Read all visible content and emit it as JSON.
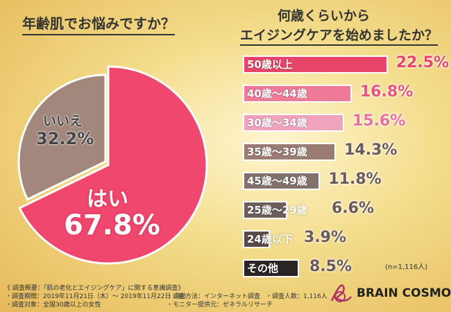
{
  "chart_data": [
    {
      "type": "pie",
      "title": "年齢肌でお悩みですか？",
      "slices": [
        {
          "label": "はい",
          "value": 67.8,
          "display": "67.8%",
          "color": "#f0476e"
        },
        {
          "label": "いいえ",
          "value": 32.2,
          "display": "32.2%",
          "color": "#a1877c"
        }
      ]
    },
    {
      "type": "bar",
      "orientation": "horizontal",
      "title": "何歳くらいから\nエイジングケアを始めましたか？",
      "title_lines": [
        "何歳くらいから",
        "エイジングケアを始めましたか？"
      ],
      "categories": [
        "50歳以上",
        "40歳〜44歳",
        "30歳〜34歳",
        "35歳〜39歳",
        "45歳〜49歳",
        "25歳〜29歳",
        "24歳以下",
        "その他"
      ],
      "values": [
        22.5,
        16.8,
        15.6,
        14.3,
        11.8,
        6.6,
        3.9,
        8.5
      ],
      "labels": [
        "22.5%",
        "16.8%",
        "15.6%",
        "14.3%",
        "11.8%",
        "6.6%",
        "3.9%",
        "8.5%"
      ],
      "colors": [
        "#e8456a",
        "#ee7a98",
        "#f0a3bd",
        "#9b7c73",
        "#82706c",
        "#6d5d5b",
        "#5a4a4a",
        "#2c2424"
      ],
      "value_colors": [
        "#e8456a",
        "#e8557a",
        "#e8709a",
        "#6a5a58",
        "#6a5a58",
        "#6a5a58",
        "#6a5a58",
        "#6a5a58"
      ],
      "note": "(n=1,116人)"
    }
  ],
  "footer": {
    "title": "《 調査概要：「肌の老化とエイジングケア」に関する意識調査》",
    "period": "・調査期間：2019年11月21日（木）〜 2019年11月22日（金）",
    "target": "・調査対象：全国30歳以上の女性",
    "method": "・調査方法：インターネット調査",
    "monitor": "・モニター提供元：ゼネラルリサーチ",
    "count": "・調査人数：1,116人"
  },
  "brand": {
    "name": "BRAIN COSMOS",
    "color": "#b0306a"
  }
}
